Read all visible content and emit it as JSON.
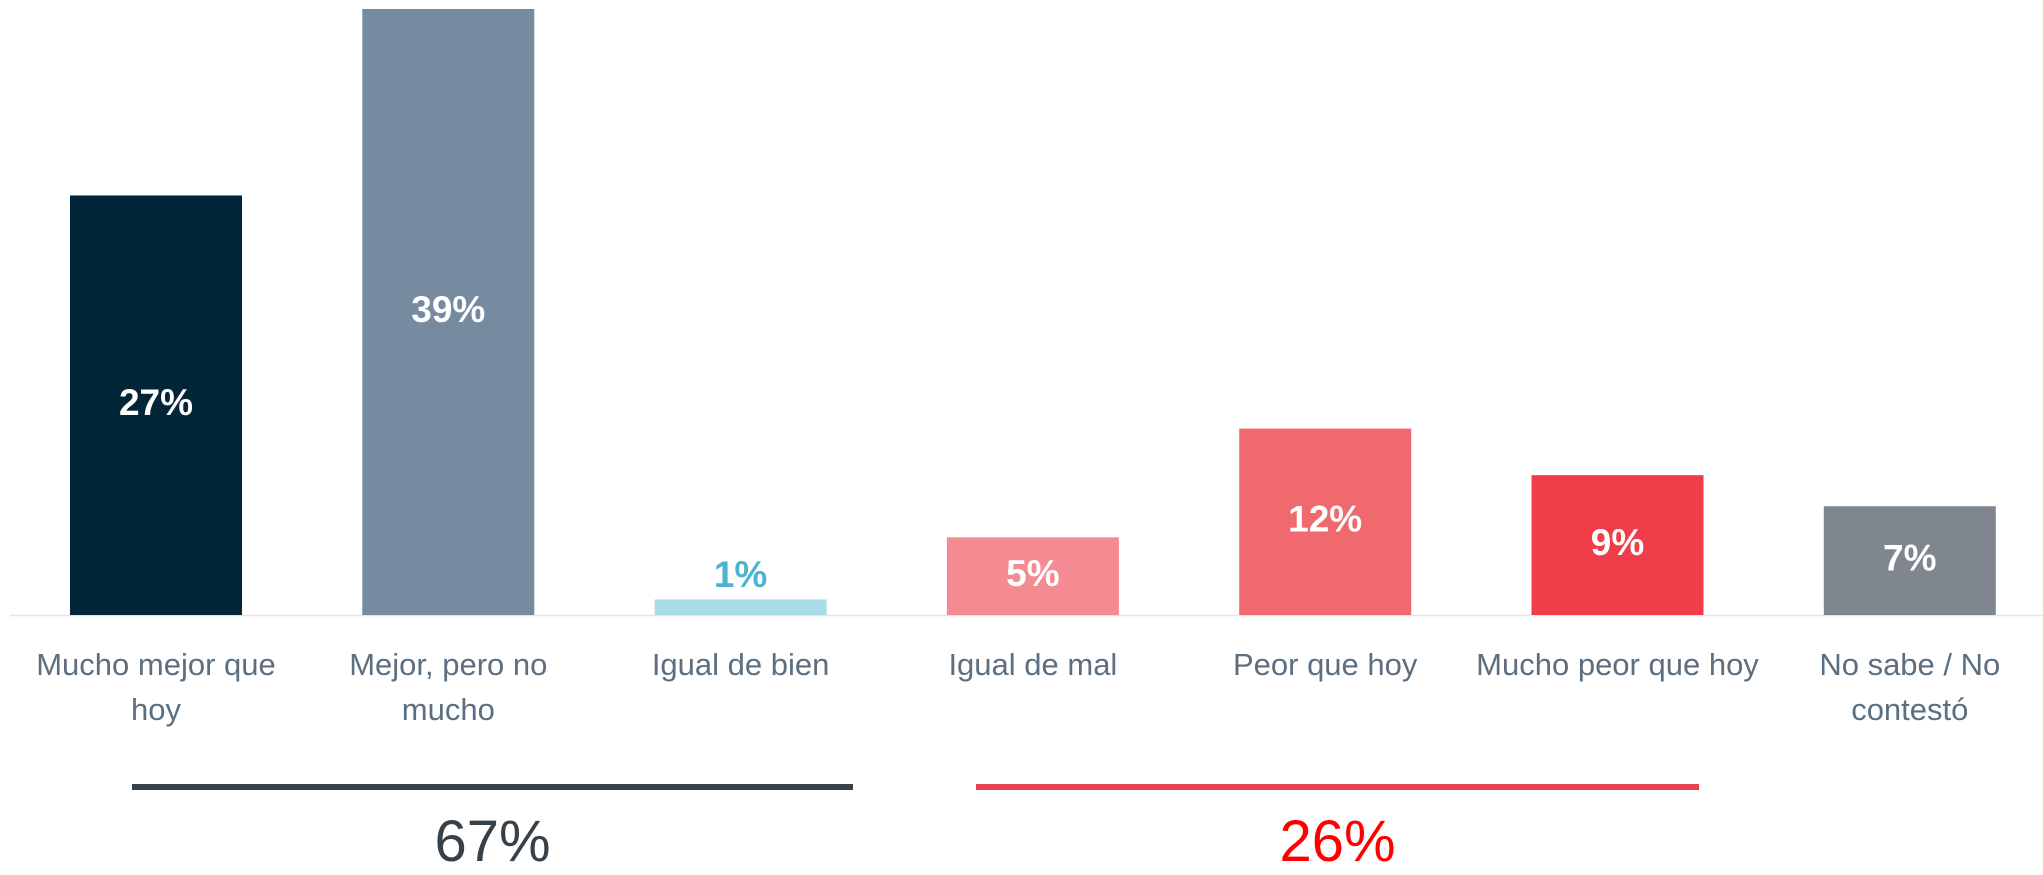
{
  "chart_data": {
    "type": "bar",
    "categories": [
      "Mucho mejor que hoy",
      "Mejor, pero no mucho",
      "Igual de bien",
      "Igual de mal",
      "Peor que hoy",
      "Mucho peor que hoy",
      "No sabe / No contestó"
    ],
    "values": [
      27,
      39,
      1,
      5,
      12,
      9,
      7
    ],
    "value_labels": [
      "27%",
      "39%",
      "1%",
      "5%",
      "12%",
      "9%",
      "7%"
    ],
    "colors": [
      "#032538",
      "#768b9f",
      "#a8dce7",
      "#f48b92",
      "#f0696f",
      "#ef3e4a",
      "#80868d"
    ],
    "outside_label_color": "#4bb4cf",
    "ylim": [
      0,
      39
    ],
    "groups": [
      {
        "value": 67,
        "value_label": "67%",
        "line_color": "#37414a",
        "text_color": "#37414a"
      },
      {
        "value": 26,
        "value_label": "26%",
        "line_color": "#e8414f",
        "text_color": "#ff0000"
      }
    ]
  }
}
